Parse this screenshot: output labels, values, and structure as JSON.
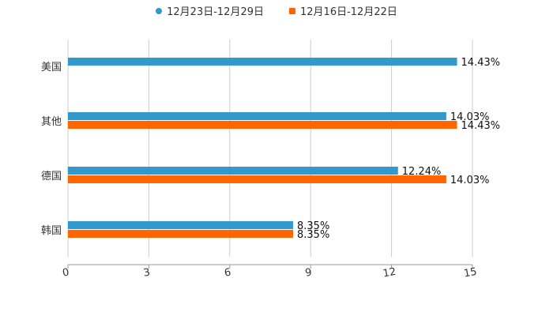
{
  "chart_data": {
    "type": "bar",
    "orientation": "horizontal",
    "categories": [
      "美国",
      "其他",
      "德国",
      "韩国"
    ],
    "series": [
      {
        "name": "12月23日-12月29日",
        "color": "#3399cc",
        "values": [
          14.43,
          14.03,
          12.24,
          8.35
        ],
        "labels": [
          "14.43%",
          "14.03%",
          "12.24%",
          "8.35%"
        ]
      },
      {
        "name": "12月16日-12月22日",
        "color": "#ff6600",
        "values": [
          null,
          14.43,
          14.03,
          8.35
        ],
        "labels": [
          null,
          "14.43%",
          "14.03%",
          "8.35%"
        ]
      }
    ],
    "xticks": [
      "0",
      "3",
      "6",
      "9",
      "12",
      "15"
    ],
    "xlim": [
      0,
      15
    ],
    "grid": true,
    "legend_position": "top-center",
    "title": "",
    "xlabel": "",
    "ylabel": ""
  }
}
